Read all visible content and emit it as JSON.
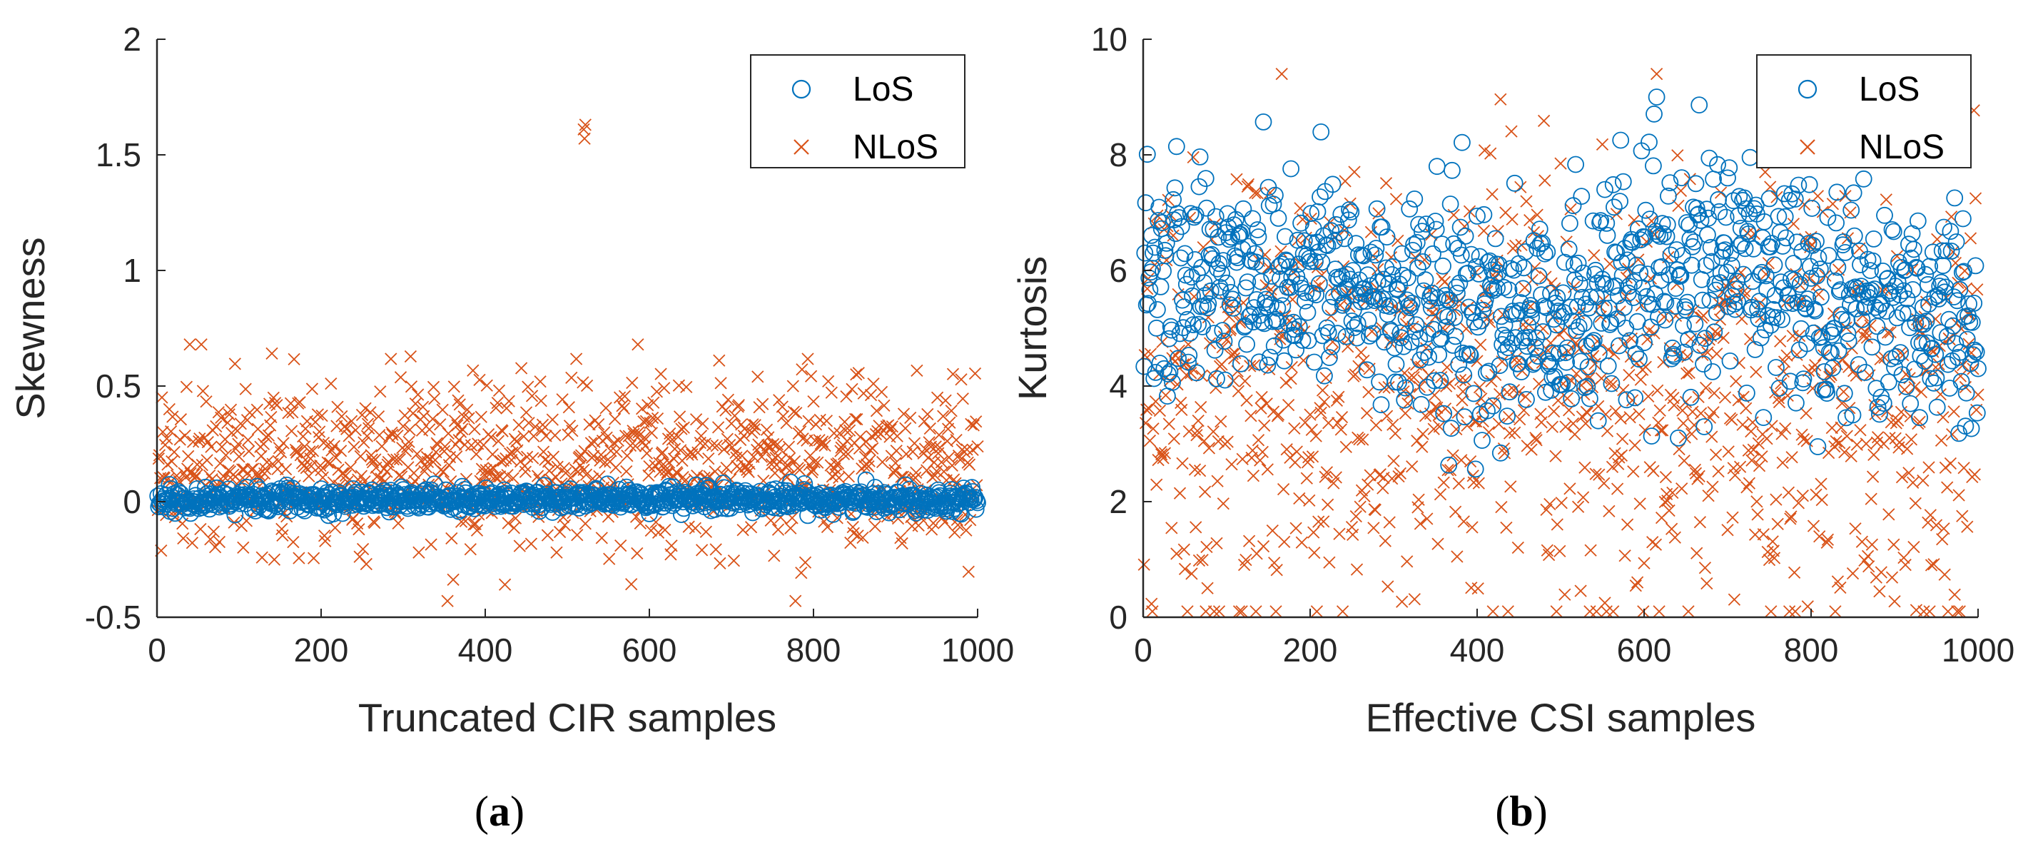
{
  "chart_data": [
    {
      "type": "scatter",
      "panel_label": "a",
      "title": "",
      "xlabel": "Truncated CIR samples",
      "ylabel": "Skewness",
      "xlim": [
        0,
        1000
      ],
      "ylim": [
        -0.5,
        2
      ],
      "xticks": [
        0,
        200,
        400,
        600,
        800,
        1000
      ],
      "yticks": [
        -0.5,
        0,
        0.5,
        1,
        1.5,
        2
      ],
      "ytick_labels": [
        "-0.5",
        "0",
        "0.5",
        "1",
        "1.5",
        "2"
      ],
      "legend_position": "top-right",
      "n_points_per_series": 1000,
      "series": [
        {
          "name": "LoS",
          "marker": "circle",
          "color": "#0072BD",
          "distribution": {
            "base": 0.01,
            "spread": 0.025,
            "min": -0.06,
            "max": 0.12
          }
        },
        {
          "name": "NLoS",
          "marker": "x",
          "color": "#D95319",
          "distribution": {
            "base": 0.16,
            "spread": 0.18,
            "min": -0.43,
            "max": 0.68
          },
          "outliers": [
            {
              "x": 520,
              "y": 1.61
            },
            {
              "x": 521,
              "y": 1.57
            },
            {
              "x": 522,
              "y": 1.63
            }
          ]
        }
      ]
    },
    {
      "type": "scatter",
      "panel_label": "b",
      "title": "",
      "xlabel": "Effective CSI samples",
      "ylabel": "Kurtosis",
      "xlim": [
        0,
        1000
      ],
      "ylim": [
        0,
        10
      ],
      "xticks": [
        0,
        200,
        400,
        600,
        800,
        1000
      ],
      "yticks": [
        0,
        2,
        4,
        6,
        8,
        10
      ],
      "ytick_labels": [
        "0",
        "2",
        "4",
        "6",
        "8",
        "10"
      ],
      "legend_position": "top-right",
      "n_points_per_series": 1000,
      "series": [
        {
          "name": "LoS",
          "marker": "circle",
          "color": "#0072BD",
          "distribution": {
            "base": 5.6,
            "spread": 1.0,
            "min": 2.2,
            "max": 9.0
          }
        },
        {
          "name": "NLoS",
          "marker": "x",
          "color": "#D95319",
          "distribution": {
            "base": 3.8,
            "spread": 1.9,
            "min": 0.1,
            "max": 9.4
          }
        }
      ]
    }
  ]
}
